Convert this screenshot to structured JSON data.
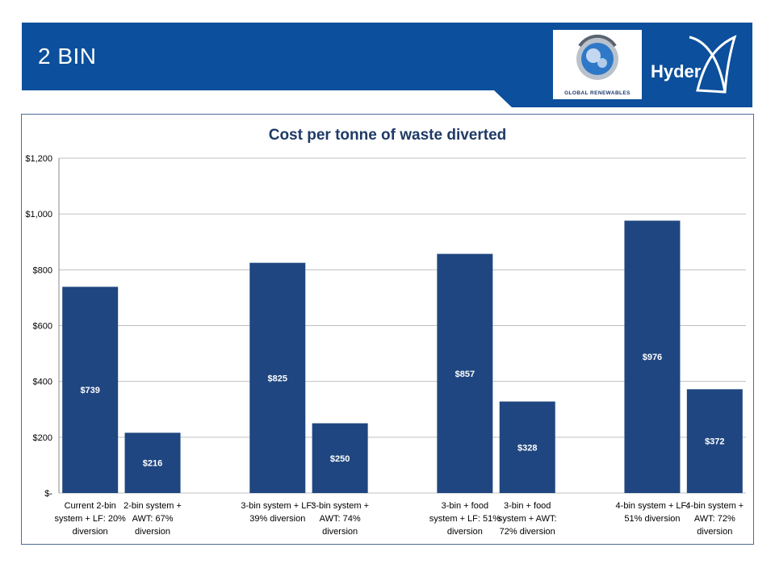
{
  "slide": {
    "title": "2 BIN"
  },
  "logos": {
    "global_renewables_text": "GLOBAL RENEWABLES",
    "hyder_text": "Hyder"
  },
  "colors": {
    "header_blue": "#0c4f9c",
    "bar_blue": "#1f4680",
    "grid": "#c0c0c0"
  },
  "chart_data": {
    "type": "bar",
    "title": "Cost per tonne of waste diverted",
    "categories": [
      [
        "Current 2-bin",
        "system + LF: 20%",
        "diversion"
      ],
      [
        "2-bin system +",
        "AWT: 67%",
        "diversion"
      ],
      null,
      [
        "3-bin system + LF:",
        "39% diversion"
      ],
      [
        "3-bin system +",
        "AWT: 74%",
        "diversion"
      ],
      null,
      [
        "3-bin + food",
        "system + LF: 51%",
        "diversion"
      ],
      [
        "3-bin + food",
        "system + AWT:",
        "72% diversion"
      ],
      null,
      [
        "4-bin system + LF:",
        "51% diversion"
      ],
      [
        "4-bin system +",
        "AWT: 72%",
        "diversion"
      ]
    ],
    "values": [
      739,
      216,
      null,
      825,
      250,
      null,
      857,
      328,
      null,
      976,
      372
    ],
    "data_labels": [
      "$739",
      "$216",
      null,
      "$825",
      "$250",
      null,
      "$857",
      "$328",
      null,
      "$976",
      "$372"
    ],
    "ylim": [
      0,
      1200
    ],
    "yticks": [
      0,
      200,
      400,
      600,
      800,
      1000,
      1200
    ],
    "ytick_labels": [
      "$-",
      "$200",
      "$400",
      "$600",
      "$800",
      "$1,000",
      "$1,200"
    ],
    "xlabel": "",
    "ylabel": "",
    "grid": true,
    "legend": "none"
  }
}
